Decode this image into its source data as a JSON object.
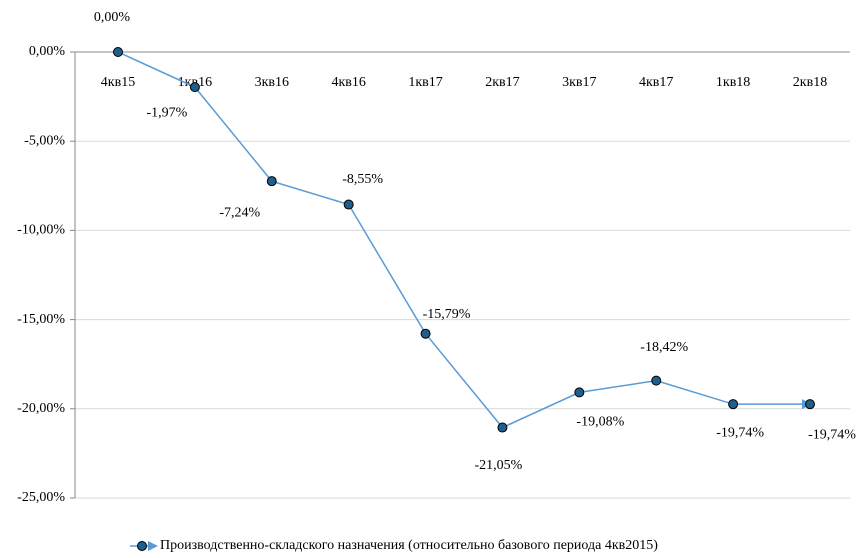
{
  "chart_data": {
    "type": "line",
    "categories": [
      "4кв15",
      "1кв16",
      "3кв16",
      "4кв16",
      "1кв17",
      "2кв17",
      "3кв17",
      "4кв17",
      "1кв18",
      "2кв18"
    ],
    "series": [
      {
        "name": "Производственно-складского назначения (относительно базового периода 4кв2015)",
        "color": "#5b9bd5",
        "marker_color": "#1f5f8b",
        "values": [
          0,
          -1.97,
          -7.24,
          -8.55,
          -15.79,
          -21.05,
          -19.08,
          -18.42,
          -19.74,
          -19.74
        ],
        "value_labels": [
          "0,00%",
          "-1,97%",
          "-7,24%",
          "-8,55%",
          "-15,79%",
          "-21,05%",
          "-19,08%",
          "-18,42%",
          "-19,74%",
          "-19,74%"
        ]
      }
    ],
    "ylim": [
      -25,
      0
    ],
    "yticks": [
      {
        "value": 0,
        "label": "0,00%"
      },
      {
        "value": -5,
        "label": "-5,00%"
      },
      {
        "value": -10,
        "label": "-10,00%"
      },
      {
        "value": -15,
        "label": "-15,00%"
      },
      {
        "value": -20,
        "label": "-20,00%"
      },
      {
        "value": -25,
        "label": "-25,00%"
      }
    ],
    "grid": true,
    "legend": "bottom"
  }
}
